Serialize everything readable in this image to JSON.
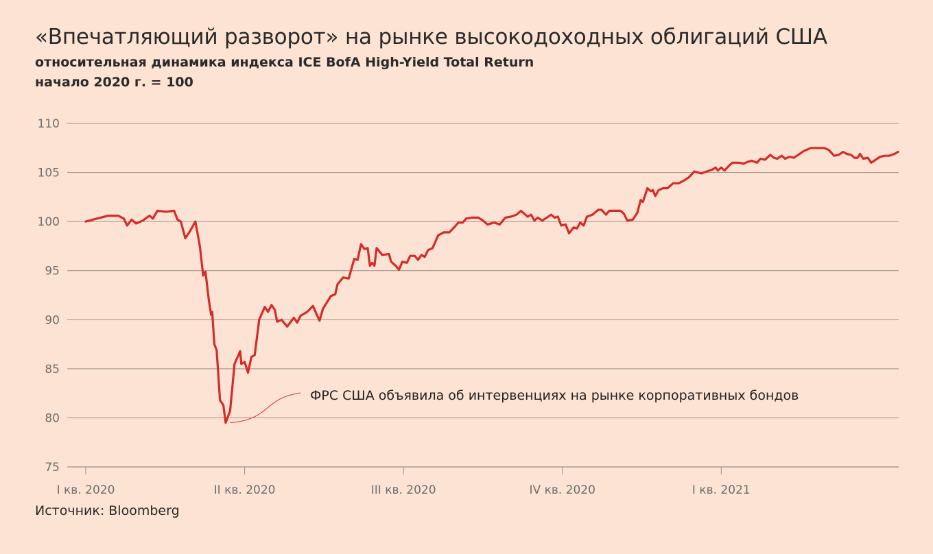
{
  "title": "«Впечатляющий разворот» на рынке высокодоходных облигаций США",
  "subtitle": "относительная динамика индекса ICE BofA High-Yield Total Return",
  "subtitle2": "начало 2020 г. = 100",
  "source": "Источник: Bloomberg",
  "colors": {
    "background": "#fde3d3",
    "line": "#d62b2b",
    "grid": "#9a8f8a",
    "tick_text": "#6f6f6f"
  },
  "chart_data": {
    "type": "line",
    "ylim": [
      75,
      110
    ],
    "yticks": [
      110,
      105,
      100,
      95,
      90,
      85,
      80,
      75
    ],
    "grid": true,
    "xlim": [
      0,
      71
    ],
    "xticks": [
      {
        "x": 0,
        "label": "I кв. 2020"
      },
      {
        "x": 14.2,
        "label": "II кв. 2020"
      },
      {
        "x": 28.4,
        "label": "III кв. 2020"
      },
      {
        "x": 42.6,
        "label": "IV кв. 2020"
      },
      {
        "x": 56.8,
        "label": "I кв. 2021"
      }
    ],
    "annotation": {
      "text": "ФРС США объявила об интервенциях на рынке корпоративных бондов",
      "x": 12.9,
      "y": 79.5
    },
    "series": [
      {
        "values": [
          [
            0.0,
            100.0
          ],
          [
            1.0,
            100.3
          ],
          [
            2.0,
            100.6
          ],
          [
            2.9,
            100.6
          ],
          [
            3.4,
            100.3
          ],
          [
            3.7,
            99.6
          ],
          [
            4.1,
            100.2
          ],
          [
            4.5,
            99.8
          ],
          [
            5.1,
            100.1
          ],
          [
            5.7,
            100.6
          ],
          [
            6.0,
            100.3
          ],
          [
            6.4,
            101.1
          ],
          [
            7.2,
            101.0
          ],
          [
            7.9,
            101.1
          ],
          [
            8.2,
            100.2
          ],
          [
            8.5,
            100.0
          ],
          [
            8.9,
            98.3
          ],
          [
            9.3,
            99.0
          ],
          [
            9.8,
            100.0
          ],
          [
            10.2,
            97.5
          ],
          [
            10.5,
            94.5
          ],
          [
            10.7,
            94.9
          ],
          [
            11.0,
            92.0
          ],
          [
            11.2,
            90.5
          ],
          [
            11.3,
            90.8
          ],
          [
            11.5,
            87.5
          ],
          [
            11.7,
            86.9
          ],
          [
            12.0,
            81.8
          ],
          [
            12.3,
            81.3
          ],
          [
            12.5,
            79.5
          ],
          [
            12.9,
            80.7
          ],
          [
            13.3,
            85.5
          ],
          [
            13.8,
            86.8
          ],
          [
            13.9,
            85.5
          ],
          [
            14.2,
            85.7
          ],
          [
            14.5,
            84.6
          ],
          [
            14.8,
            86.2
          ],
          [
            15.1,
            86.4
          ],
          [
            15.5,
            90.0
          ],
          [
            16.0,
            91.3
          ],
          [
            16.3,
            90.8
          ],
          [
            16.6,
            91.5
          ],
          [
            16.9,
            91.0
          ],
          [
            17.1,
            89.8
          ],
          [
            17.5,
            90.0
          ],
          [
            18.0,
            89.3
          ],
          [
            18.6,
            90.2
          ],
          [
            18.9,
            89.7
          ],
          [
            19.2,
            90.4
          ],
          [
            19.8,
            90.8
          ],
          [
            20.3,
            91.4
          ],
          [
            20.9,
            89.9
          ],
          [
            21.2,
            91.1
          ],
          [
            21.9,
            92.4
          ],
          [
            22.3,
            92.6
          ],
          [
            22.5,
            93.6
          ],
          [
            23.0,
            94.3
          ],
          [
            23.5,
            94.2
          ],
          [
            24.0,
            96.2
          ],
          [
            24.3,
            96.1
          ],
          [
            24.6,
            97.7
          ],
          [
            24.9,
            97.2
          ],
          [
            25.2,
            97.3
          ],
          [
            25.4,
            95.5
          ],
          [
            25.6,
            95.8
          ],
          [
            25.8,
            95.5
          ],
          [
            26.0,
            97.3
          ],
          [
            26.5,
            96.6
          ],
          [
            27.1,
            96.7
          ],
          [
            27.3,
            95.9
          ],
          [
            27.7,
            95.5
          ],
          [
            28.0,
            95.1
          ],
          [
            28.3,
            95.9
          ],
          [
            28.7,
            95.8
          ],
          [
            29.0,
            96.5
          ],
          [
            29.4,
            96.5
          ],
          [
            29.7,
            96.1
          ],
          [
            30.0,
            96.6
          ],
          [
            30.3,
            96.4
          ],
          [
            30.6,
            97.1
          ],
          [
            31.0,
            97.3
          ],
          [
            31.5,
            98.6
          ],
          [
            32.0,
            98.9
          ],
          [
            32.5,
            98.9
          ],
          [
            33.0,
            99.5
          ],
          [
            33.3,
            99.9
          ],
          [
            33.7,
            99.9
          ],
          [
            34.0,
            100.3
          ],
          [
            34.5,
            100.4
          ],
          [
            35.1,
            100.4
          ],
          [
            35.5,
            100.1
          ],
          [
            35.9,
            99.7
          ],
          [
            36.5,
            99.9
          ],
          [
            37.0,
            99.7
          ],
          [
            37.5,
            100.4
          ],
          [
            38.0,
            100.5
          ],
          [
            38.5,
            100.7
          ],
          [
            38.9,
            101.1
          ],
          [
            39.2,
            100.8
          ],
          [
            39.5,
            100.5
          ],
          [
            39.8,
            100.7
          ],
          [
            40.1,
            100.1
          ],
          [
            40.4,
            100.4
          ],
          [
            40.8,
            100.1
          ],
          [
            41.2,
            100.4
          ],
          [
            41.6,
            100.7
          ],
          [
            41.9,
            100.4
          ],
          [
            42.2,
            100.5
          ],
          [
            42.5,
            99.6
          ],
          [
            42.9,
            99.7
          ],
          [
            43.2,
            98.8
          ],
          [
            43.6,
            99.4
          ],
          [
            43.9,
            99.3
          ],
          [
            44.2,
            99.9
          ],
          [
            44.5,
            99.6
          ],
          [
            44.8,
            100.5
          ],
          [
            45.3,
            100.7
          ],
          [
            45.8,
            101.2
          ],
          [
            46.1,
            101.2
          ],
          [
            46.5,
            100.7
          ],
          [
            46.8,
            101.1
          ],
          [
            47.2,
            101.1
          ],
          [
            47.8,
            101.1
          ],
          [
            48.1,
            100.8
          ],
          [
            48.4,
            100.1
          ],
          [
            48.9,
            100.2
          ],
          [
            49.3,
            100.9
          ],
          [
            49.6,
            102.2
          ],
          [
            49.8,
            102.0
          ],
          [
            50.2,
            103.4
          ],
          [
            50.5,
            103.1
          ],
          [
            50.7,
            103.2
          ],
          [
            50.9,
            102.6
          ],
          [
            51.2,
            103.2
          ],
          [
            51.6,
            103.4
          ],
          [
            52.0,
            103.4
          ],
          [
            52.5,
            103.9
          ],
          [
            53.0,
            103.9
          ],
          [
            53.5,
            104.2
          ],
          [
            53.9,
            104.5
          ],
          [
            54.4,
            105.1
          ],
          [
            55.0,
            104.9
          ],
          [
            55.5,
            105.1
          ],
          [
            56.0,
            105.3
          ],
          [
            56.3,
            105.5
          ],
          [
            56.5,
            105.2
          ],
          [
            56.8,
            105.5
          ],
          [
            57.1,
            105.2
          ],
          [
            57.5,
            105.7
          ],
          [
            57.8,
            106.0
          ],
          [
            58.4,
            106.0
          ],
          [
            58.8,
            105.9
          ],
          [
            59.2,
            106.1
          ],
          [
            59.5,
            106.2
          ],
          [
            60.0,
            106.0
          ],
          [
            60.3,
            106.4
          ],
          [
            60.7,
            106.3
          ],
          [
            61.2,
            106.8
          ],
          [
            61.5,
            106.5
          ],
          [
            61.8,
            106.4
          ],
          [
            62.2,
            106.7
          ],
          [
            62.5,
            106.4
          ],
          [
            62.9,
            106.6
          ],
          [
            63.3,
            106.5
          ],
          [
            63.8,
            106.9
          ],
          [
            64.2,
            107.2
          ],
          [
            64.8,
            107.5
          ],
          [
            65.4,
            107.5
          ],
          [
            66.0,
            107.5
          ],
          [
            66.4,
            107.3
          ],
          [
            66.9,
            106.7
          ],
          [
            67.3,
            106.8
          ],
          [
            67.7,
            107.1
          ],
          [
            68.0,
            106.9
          ],
          [
            68.4,
            106.8
          ],
          [
            68.7,
            106.5
          ],
          [
            69.0,
            106.5
          ],
          [
            69.2,
            106.9
          ],
          [
            69.5,
            106.4
          ],
          [
            69.9,
            106.5
          ],
          [
            70.2,
            106.0
          ],
          [
            70.6,
            106.3
          ],
          [
            71.0,
            106.6
          ],
          [
            71.4,
            106.7
          ],
          [
            71.8,
            106.7
          ],
          [
            72.3,
            106.9
          ],
          [
            72.6,
            107.1
          ]
        ]
      }
    ]
  }
}
